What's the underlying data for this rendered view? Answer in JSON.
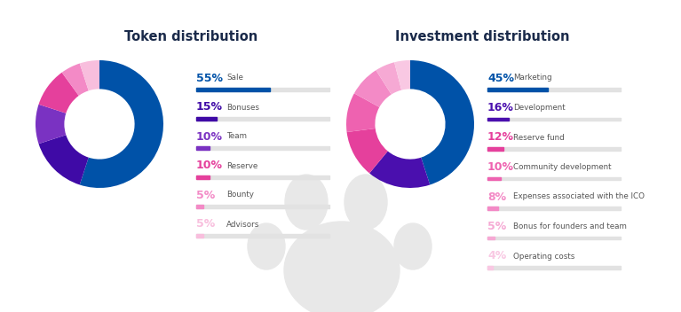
{
  "chart_data": [
    {
      "type": "donut",
      "title": "Token distribution",
      "categories": [
        "Sale",
        "Bonuses",
        "Team",
        "Reserve",
        "Bounty",
        "Advisors"
      ],
      "values": [
        55,
        15,
        10,
        10,
        5,
        5
      ],
      "value_labels": [
        "55%",
        "15%",
        "10%",
        "10%",
        "5%",
        "5%"
      ],
      "colors": [
        "#0052a8",
        "#3f0aa6",
        "#7a32c2",
        "#e5409c",
        "#f38ac6",
        "#f8bedd"
      ]
    },
    {
      "type": "donut",
      "title": "Investment distribution",
      "categories": [
        "Marketing",
        "Development",
        "Reserve fund",
        "Community development",
        "Expenses associated with the ICO",
        "Bonus for founders and team",
        "Operating costs"
      ],
      "values": [
        45,
        16,
        12,
        10,
        8,
        5,
        4
      ],
      "value_labels": [
        "45%",
        "16%",
        "12%",
        "10%",
        "8%",
        "5%",
        "4%"
      ],
      "colors": [
        "#0052a8",
        "#4a0fae",
        "#e5409c",
        "#ee62b0",
        "#f38ac6",
        "#f6a9d4",
        "#f9c8e3"
      ]
    }
  ]
}
